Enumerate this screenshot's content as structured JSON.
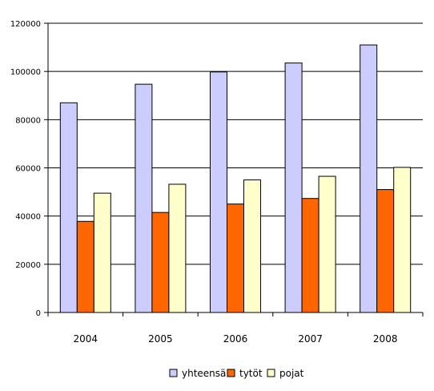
{
  "chart_data": {
    "type": "bar",
    "categories": [
      "2004",
      "2005",
      "2006",
      "2007",
      "2008"
    ],
    "series": [
      {
        "name": "yhteensä",
        "color": "#ccccff",
        "values": [
          87000,
          94700,
          99800,
          103500,
          111000
        ]
      },
      {
        "name": "tytöt",
        "color": "#ff6600",
        "values": [
          37800,
          41500,
          45000,
          47300,
          51000
        ]
      },
      {
        "name": "pojat",
        "color": "#ffffcc",
        "values": [
          49500,
          53200,
          55000,
          56500,
          60200
        ]
      }
    ],
    "ylim": [
      0,
      120000
    ],
    "yticks": [
      "0",
      "20000",
      "40000",
      "60000",
      "80000",
      "100000",
      "120000"
    ],
    "grid": true,
    "legend_position": "bottom"
  }
}
